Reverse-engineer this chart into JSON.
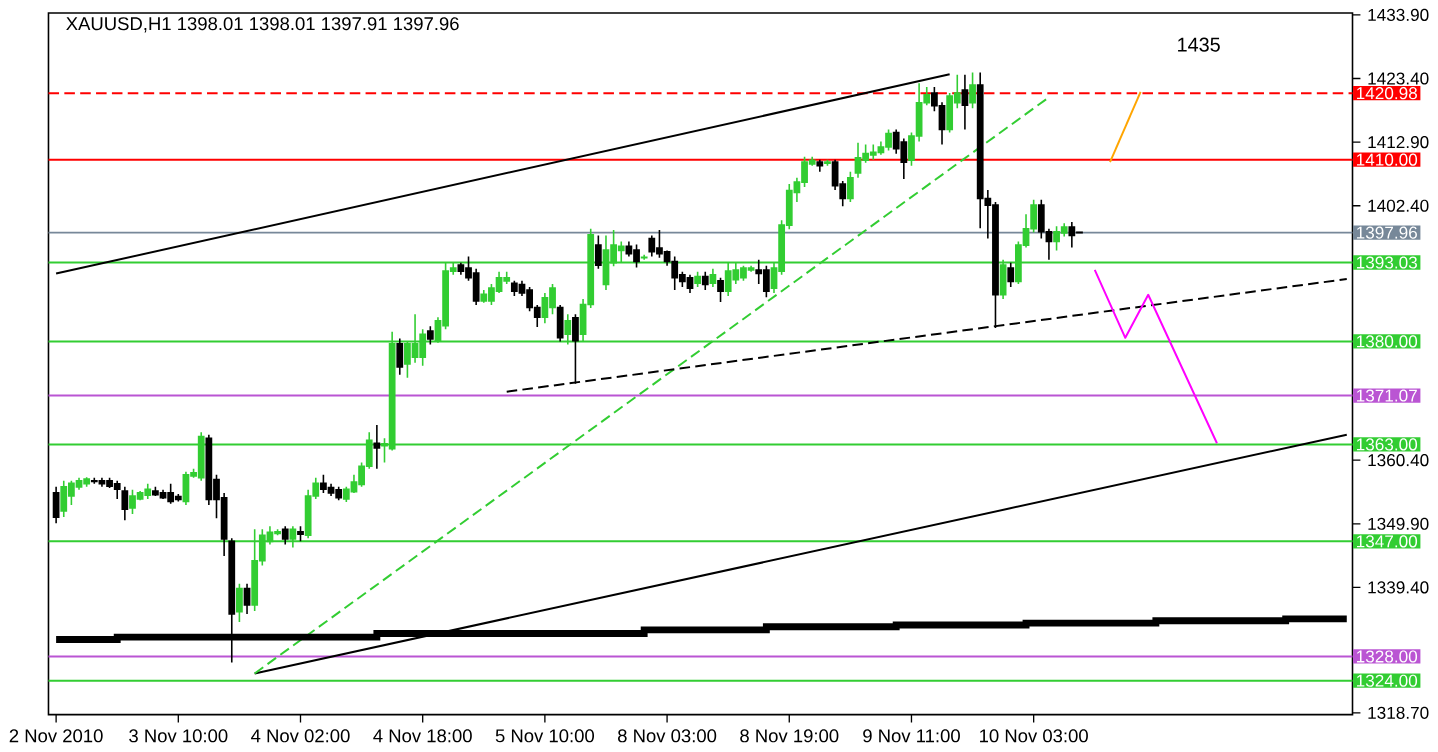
{
  "chart_data": {
    "type": "candlestick",
    "title": "XAUUSD,H1  1398.01 1398.01 1397.91 1397.96",
    "ylim": [
      1318.4,
      1434.2
    ],
    "categories": [
      "2 Nov 2010",
      null,
      null,
      null,
      null,
      null,
      null,
      null,
      null,
      null,
      null,
      null,
      null,
      null,
      null,
      null,
      "3 Nov 10:00",
      null,
      null,
      null,
      null,
      null,
      null,
      null,
      null,
      null,
      null,
      null,
      null,
      null,
      null,
      null,
      "4 Nov 02:00",
      null,
      null,
      null,
      null,
      null,
      null,
      null,
      null,
      null,
      null,
      null,
      null,
      null,
      null,
      null,
      "4 Nov 18:00",
      null,
      null,
      null,
      null,
      null,
      null,
      null,
      null,
      null,
      null,
      null,
      null,
      null,
      null,
      null,
      "5 Nov 10:00",
      null,
      null,
      null,
      null,
      null,
      null,
      null,
      null,
      null,
      null,
      null,
      null,
      null,
      null,
      null,
      "8 Nov 03:00",
      null,
      null,
      null,
      null,
      null,
      null,
      null,
      null,
      null,
      null,
      null,
      null,
      null,
      null,
      null,
      "8 Nov 19:00",
      null,
      null,
      null,
      null,
      null,
      null,
      null,
      null,
      null,
      null,
      null,
      null,
      null,
      null,
      null,
      "9 Nov 11:00",
      null,
      null,
      null,
      null,
      null,
      null,
      null,
      null,
      null,
      null,
      null,
      null,
      null,
      null,
      null,
      "10 Nov 03:00",
      null,
      null,
      null,
      null,
      null,
      null,
      null,
      null,
      null,
      null,
      null,
      null,
      null,
      null,
      null,
      null,
      null,
      null,
      null,
      null,
      null,
      null,
      null,
      null,
      null,
      null,
      null,
      null,
      null,
      null,
      null,
      null,
      null,
      null,
      null,
      null,
      null,
      null,
      null,
      null,
      null
    ],
    "yticks": [
      {
        "value": 1433.9,
        "label": "1433.90"
      },
      {
        "value": 1423.4,
        "label": "1423.40"
      },
      {
        "value": 1412.9,
        "label": "1412.90"
      },
      {
        "value": 1402.4,
        "label": "1402.40"
      },
      {
        "value": 1360.4,
        "label": "1360.40"
      },
      {
        "value": 1349.9,
        "label": "1349.90"
      },
      {
        "value": 1339.4,
        "label": "1339.40"
      },
      {
        "value": 1318.7,
        "label": "1318.70"
      }
    ],
    "ref_lines": [
      {
        "axis": "y",
        "value": 1420.98,
        "label": "1420.98",
        "color": "#ff0000",
        "line_style": "dashed"
      },
      {
        "axis": "y",
        "value": 1410.0,
        "label": "1410.00",
        "color": "#ff0000",
        "line_style": "solid"
      },
      {
        "axis": "y",
        "value": 1397.96,
        "label": "1397.96",
        "color": "#778899",
        "line_style": "solid"
      },
      {
        "axis": "y",
        "value": 1393.03,
        "label": "1393.03",
        "color": "#32cd32",
        "line_style": "solid"
      },
      {
        "axis": "y",
        "value": 1380.0,
        "label": "1380.00",
        "color": "#32cd32",
        "line_style": "solid"
      },
      {
        "axis": "y",
        "value": 1371.07,
        "label": "1371.07",
        "color": "#ba55d3",
        "line_style": "solid"
      },
      {
        "axis": "y",
        "value": 1363.0,
        "label": "1363.00",
        "color": "#32cd32",
        "line_style": "solid"
      },
      {
        "axis": "y",
        "value": 1347.0,
        "label": "1347.00",
        "color": "#32cd32",
        "line_style": "solid"
      },
      {
        "axis": "y",
        "value": 1328.0,
        "label": "1328.00",
        "color": "#ba55d3",
        "line_style": "solid"
      },
      {
        "axis": "y",
        "value": 1324.0,
        "label": "1324.00",
        "color": "#32cd32",
        "line_style": "solid"
      }
    ],
    "annotations": [
      "1435"
    ],
    "series": [
      {
        "type": "line",
        "color": "#000000",
        "line_style": "solid",
        "values": [
          1391.2,
          null,
          null,
          null,
          null,
          null,
          null,
          null,
          null,
          null,
          null,
          null,
          null,
          null,
          null,
          null,
          null,
          null,
          null,
          null,
          null,
          null,
          null,
          null,
          null,
          null,
          null,
          null,
          null,
          null,
          null,
          null,
          null,
          null,
          null,
          null,
          null,
          null,
          null,
          null,
          null,
          null,
          null,
          null,
          null,
          null,
          null,
          null,
          null,
          null,
          null,
          null,
          null,
          null,
          null,
          null,
          null,
          null,
          null,
          null,
          null,
          null,
          null,
          null,
          null,
          null,
          null,
          null,
          null,
          null,
          null,
          null,
          null,
          null,
          null,
          null,
          null,
          null,
          null,
          null,
          null,
          null,
          null,
          null,
          null,
          null,
          null,
          null,
          null,
          null,
          null,
          null,
          null,
          null,
          null,
          null,
          null,
          null,
          null,
          null,
          null,
          null,
          null,
          null,
          null,
          null,
          null,
          null,
          null,
          null,
          null,
          null,
          null,
          null,
          null,
          null,
          null,
          1424.1,
          null,
          null,
          null,
          null,
          null,
          null,
          null,
          null,
          null,
          null,
          null,
          null,
          null,
          null,
          null,
          null,
          null,
          null,
          null,
          null,
          null,
          null,
          null,
          null,
          null,
          null,
          null,
          null,
          null,
          null,
          null,
          null,
          null,
          null,
          null,
          null,
          null,
          null,
          null,
          null,
          null,
          null,
          null,
          null,
          null,
          null,
          null,
          null,
          null,
          null,
          null,
          null
        ]
      },
      {
        "type": "line",
        "color": "#000000",
        "line_style": "solid",
        "values": [
          null,
          null,
          null,
          null,
          null,
          null,
          null,
          null,
          null,
          null,
          null,
          null,
          null,
          null,
          null,
          null,
          null,
          null,
          null,
          null,
          null,
          null,
          null,
          null,
          null,
          null,
          1325.2,
          null,
          null,
          null,
          null,
          null,
          null,
          null,
          null,
          null,
          null,
          null,
          null,
          null,
          null,
          null,
          null,
          null,
          null,
          null,
          null,
          null,
          null,
          null,
          null,
          null,
          null,
          null,
          null,
          null,
          null,
          null,
          null,
          null,
          null,
          null,
          null,
          null,
          null,
          null,
          null,
          null,
          null,
          null,
          null,
          null,
          null,
          null,
          null,
          null,
          null,
          null,
          null,
          null,
          null,
          null,
          null,
          null,
          null,
          null,
          null,
          null,
          null,
          null,
          null,
          null,
          null,
          null,
          null,
          null,
          null,
          null,
          null,
          null,
          null,
          null,
          null,
          null,
          null,
          null,
          null,
          null,
          null,
          null,
          null,
          null,
          null,
          null,
          null,
          null,
          null,
          null,
          null,
          null,
          null,
          null,
          null,
          null,
          null,
          null,
          null,
          null,
          null,
          null,
          null,
          null,
          null,
          null,
          null,
          null,
          null,
          null,
          null,
          null,
          null,
          null,
          null,
          null,
          null,
          null,
          null,
          null,
          null,
          null,
          null,
          null,
          null,
          null,
          null,
          null,
          null,
          null,
          null,
          null,
          null,
          null,
          null,
          null,
          null,
          null,
          null,
          null,
          null,
          1364.6
        ]
      },
      {
        "type": "line",
        "color": "#32cd32",
        "line_style": "dashed",
        "values": [
          null,
          null,
          null,
          null,
          null,
          null,
          null,
          null,
          null,
          null,
          null,
          null,
          null,
          null,
          null,
          null,
          null,
          null,
          null,
          null,
          null,
          null,
          null,
          null,
          null,
          null,
          1325.2,
          null,
          null,
          null,
          null,
          null,
          null,
          null,
          null,
          null,
          null,
          null,
          null,
          null,
          null,
          null,
          null,
          null,
          null,
          null,
          null,
          null,
          null,
          null,
          null,
          null,
          null,
          null,
          null,
          null,
          null,
          null,
          null,
          null,
          null,
          null,
          null,
          null,
          null,
          null,
          null,
          null,
          null,
          null,
          null,
          null,
          null,
          null,
          null,
          null,
          null,
          null,
          null,
          null,
          null,
          null,
          null,
          null,
          null,
          null,
          null,
          null,
          null,
          null,
          null,
          null,
          null,
          null,
          null,
          null,
          null,
          null,
          null,
          null,
          null,
          null,
          null,
          null,
          null,
          null,
          null,
          null,
          null,
          null,
          null,
          null,
          null,
          null,
          null,
          null,
          null,
          null,
          null,
          null,
          null,
          null,
          null,
          null,
          null,
          null,
          null,
          null,
          null,
          null,
          1420.3,
          null,
          null,
          null,
          null,
          null,
          null,
          null,
          null,
          null,
          null,
          null,
          null,
          null,
          null,
          null,
          null,
          null,
          null,
          null,
          null,
          null,
          null,
          null,
          null,
          null,
          null,
          null,
          null,
          null,
          null,
          null,
          null,
          null,
          null,
          null,
          null,
          null,
          null,
          null
        ]
      },
      {
        "type": "line",
        "color": "#000000",
        "line_style": "dashed",
        "values": [
          null,
          null,
          null,
          null,
          null,
          null,
          null,
          null,
          null,
          null,
          null,
          null,
          null,
          null,
          null,
          null,
          null,
          null,
          null,
          null,
          null,
          null,
          null,
          null,
          null,
          null,
          null,
          null,
          null,
          null,
          null,
          null,
          null,
          null,
          null,
          null,
          null,
          null,
          null,
          null,
          null,
          null,
          null,
          null,
          null,
          null,
          null,
          null,
          null,
          null,
          null,
          null,
          null,
          null,
          null,
          null,
          null,
          null,
          null,
          1371.7,
          null,
          null,
          null,
          null,
          null,
          null,
          null,
          null,
          null,
          null,
          null,
          null,
          null,
          null,
          null,
          null,
          null,
          null,
          null,
          null,
          null,
          null,
          null,
          null,
          null,
          null,
          null,
          null,
          null,
          null,
          null,
          null,
          null,
          null,
          null,
          null,
          null,
          null,
          null,
          null,
          null,
          null,
          null,
          null,
          null,
          null,
          null,
          null,
          null,
          null,
          null,
          null,
          null,
          null,
          null,
          null,
          null,
          null,
          null,
          null,
          null,
          null,
          null,
          null,
          null,
          null,
          null,
          null,
          null,
          null,
          null,
          null,
          null,
          null,
          null,
          null,
          null,
          null,
          null,
          null,
          null,
          null,
          null,
          null,
          null,
          null,
          null,
          null,
          null,
          null,
          null,
          null,
          null,
          null,
          null,
          null,
          null,
          null,
          null,
          null,
          null,
          null,
          null,
          null,
          null,
          null,
          null,
          null,
          null,
          1390.3
        ]
      },
      {
        "type": "step",
        "color": "#000000",
        "line_style": "solid",
        "values": [
          1330.8,
          null,
          null,
          null,
          null,
          null,
          null,
          null,
          1331.2,
          null,
          null,
          null,
          null,
          null,
          null,
          null,
          null,
          null,
          null,
          null,
          null,
          null,
          null,
          null,
          null,
          null,
          null,
          null,
          null,
          null,
          null,
          null,
          null,
          null,
          null,
          null,
          null,
          null,
          null,
          null,
          null,
          null,
          1331.8,
          null,
          null,
          null,
          null,
          null,
          null,
          null,
          null,
          null,
          null,
          null,
          null,
          null,
          null,
          null,
          null,
          null,
          null,
          null,
          null,
          null,
          null,
          null,
          null,
          null,
          null,
          null,
          null,
          null,
          null,
          null,
          null,
          null,
          null,
          1332.4,
          null,
          null,
          null,
          null,
          null,
          null,
          null,
          null,
          null,
          null,
          null,
          null,
          null,
          null,
          null,
          1332.9,
          null,
          null,
          null,
          null,
          null,
          null,
          null,
          null,
          null,
          null,
          null,
          null,
          null,
          null,
          null,
          null,
          1333.2,
          null,
          null,
          null,
          null,
          null,
          null,
          null,
          null,
          null,
          null,
          null,
          null,
          null,
          null,
          null,
          null,
          1333.5,
          null,
          null,
          null,
          null,
          null,
          null,
          null,
          null,
          null,
          null,
          null,
          null,
          null,
          null,
          null,
          null,
          1333.9,
          null,
          null,
          null,
          null,
          null,
          null,
          null,
          null,
          null,
          null,
          null,
          null,
          null,
          null,
          null,
          null,
          1334.2,
          null,
          null,
          null,
          null,
          null,
          null,
          null,
          1334.2
        ]
      },
      {
        "type": "line",
        "color": "#ffa500",
        "line_style": "solid",
        "values": [
          null,
          null,
          null,
          null,
          null,
          null,
          null,
          null,
          null,
          null,
          null,
          null,
          null,
          null,
          null,
          null,
          null,
          null,
          null,
          null,
          null,
          null,
          null,
          null,
          null,
          null,
          null,
          null,
          null,
          null,
          null,
          null,
          null,
          null,
          null,
          null,
          null,
          null,
          null,
          null,
          null,
          null,
          null,
          null,
          null,
          null,
          null,
          null,
          null,
          null,
          null,
          null,
          null,
          null,
          null,
          null,
          null,
          null,
          null,
          null,
          null,
          null,
          null,
          null,
          null,
          null,
          null,
          null,
          null,
          null,
          null,
          null,
          null,
          null,
          null,
          null,
          null,
          null,
          null,
          null,
          null,
          null,
          null,
          null,
          null,
          null,
          null,
          null,
          null,
          null,
          null,
          null,
          null,
          null,
          null,
          null,
          null,
          null,
          null,
          null,
          null,
          null,
          null,
          null,
          null,
          null,
          null,
          null,
          null,
          null,
          null,
          null,
          null,
          null,
          null,
          null,
          null,
          null,
          null,
          null,
          null,
          null,
          null,
          null,
          null,
          null,
          null,
          null,
          null,
          null,
          null,
          null,
          null,
          null,
          null,
          null,
          null,
          null,
          1409.6,
          null,
          null,
          null,
          1421.2,
          null,
          null,
          null,
          null,
          null,
          null,
          null,
          null,
          null,
          null,
          null,
          null,
          null,
          null,
          null,
          null,
          null,
          null,
          null,
          null,
          null,
          null,
          null,
          null,
          null,
          null,
          null
        ]
      },
      {
        "type": "line",
        "color": "#ff00ff",
        "line_style": "solid",
        "values": [
          null,
          null,
          null,
          null,
          null,
          null,
          null,
          null,
          null,
          null,
          null,
          null,
          null,
          null,
          null,
          null,
          null,
          null,
          null,
          null,
          null,
          null,
          null,
          null,
          null,
          null,
          null,
          null,
          null,
          null,
          null,
          null,
          null,
          null,
          null,
          null,
          null,
          null,
          null,
          null,
          null,
          null,
          null,
          null,
          null,
          null,
          null,
          null,
          null,
          null,
          null,
          null,
          null,
          null,
          null,
          null,
          null,
          null,
          null,
          null,
          null,
          null,
          null,
          null,
          null,
          null,
          null,
          null,
          null,
          null,
          null,
          null,
          null,
          null,
          null,
          null,
          null,
          null,
          null,
          null,
          null,
          null,
          null,
          null,
          null,
          null,
          null,
          null,
          null,
          null,
          null,
          null,
          null,
          null,
          null,
          null,
          null,
          null,
          null,
          null,
          null,
          null,
          null,
          null,
          null,
          null,
          null,
          null,
          null,
          null,
          null,
          null,
          null,
          null,
          null,
          null,
          null,
          null,
          null,
          null,
          null,
          null,
          null,
          null,
          null,
          null,
          null,
          null,
          null,
          null,
          null,
          null,
          null,
          null,
          null,
          null,
          1391.8,
          null,
          null,
          null,
          1380.6,
          null,
          null,
          1387.7,
          null,
          null,
          null,
          null,
          null,
          null,
          null,
          null,
          1363.2,
          null,
          null,
          null,
          null,
          null,
          null,
          null,
          null,
          null,
          null,
          null,
          null,
          null,
          null,
          null,
          null,
          null
        ]
      }
    ],
    "colors": [
      "#000000",
      "#32cd32",
      "#32cd32",
      "#32cd32",
      "#32cd32",
      "#000000",
      "#000000",
      "#000000",
      "#000000",
      "#000000",
      "#32cd32",
      "#32cd32",
      "#32cd32",
      "#000000",
      "#000000",
      "#000000",
      "#000000",
      "#32cd32",
      "#32cd32",
      "#32cd32",
      "#000000",
      "#000000",
      "#000000",
      "#000000",
      "#32cd32",
      "#000000",
      "#32cd32",
      "#32cd32",
      "#32cd32",
      "#32cd32",
      "#000000",
      "#32cd32",
      "#000000",
      "#32cd32",
      "#32cd32",
      "#000000",
      "#000000",
      "#000000",
      "#32cd32",
      "#32cd32",
      "#32cd32",
      "#32cd32",
      "#000000",
      "#32cd32",
      "#32cd32",
      "#000000",
      "#32cd32",
      "#32cd32",
      "#32cd32",
      "#000000",
      "#32cd32",
      "#32cd32",
      "#32cd32",
      "#000000",
      "#000000",
      "#000000",
      "#32cd32",
      "#32cd32",
      "#32cd32",
      "#32cd32",
      "#000000",
      "#000000",
      "#000000",
      "#000000",
      "#32cd32",
      "#32cd32",
      "#000000",
      "#32cd32",
      "#000000",
      "#32cd32",
      "#32cd32",
      "#000000",
      "#32cd32",
      "#32cd32",
      "#32cd32",
      "#000000",
      "#000000",
      "#32cd32",
      "#000000",
      "#000000",
      "#000000",
      "#000000",
      "#000000",
      "#000000",
      "#32cd32",
      "#000000",
      "#32cd32",
      "#000000",
      "#32cd32",
      "#32cd32",
      "#32cd32",
      "#32cd32",
      "#000000",
      "#000000",
      "#32cd32",
      "#32cd32",
      "#32cd32",
      "#32cd32",
      "#32cd32",
      "#32cd32",
      "#000000",
      "#32cd32",
      "#000000",
      "#000000",
      "#32cd32",
      "#32cd32",
      "#32cd32",
      "#32cd32",
      "#32cd32",
      "#32cd32",
      "#000000",
      "#000000",
      "#32cd32",
      "#32cd32",
      "#32cd32",
      "#000000",
      "#000000",
      "#32cd32",
      "#32cd32",
      "#000000",
      "#32cd32",
      "#000000",
      "#000000",
      "#000000",
      "#32cd32",
      "#000000",
      "#32cd32",
      "#32cd32",
      "#32cd32",
      "#000000",
      "#000000",
      "#32cd32",
      "#32cd32",
      "#000000",
      "#000000",
      null,
      null,
      null,
      null,
      null,
      null,
      null,
      null,
      null,
      null,
      null,
      null,
      null,
      null,
      null,
      null,
      null,
      null,
      null,
      null,
      null,
      null,
      null,
      null,
      null,
      null,
      null,
      null,
      null,
      null,
      null,
      null,
      null,
      null,
      null
    ],
    "ohlc": [
      [
        1355,
        1356,
        1350,
        1351
      ],
      [
        1352,
        1357,
        1351,
        1356
      ],
      [
        1354.5,
        1357,
        1353,
        1356.6
      ],
      [
        1356,
        1357.5,
        1355.5,
        1357
      ],
      [
        1356.5,
        1357.6,
        1356,
        1357.3
      ],
      [
        1357,
        1357.5,
        1356.5,
        1356.9
      ],
      [
        1357,
        1357.5,
        1356,
        1356.5
      ],
      [
        1357,
        1357.5,
        1355.8,
        1356.1
      ],
      [
        1356.5,
        1357,
        1354,
        1355.6
      ],
      [
        1355.3,
        1356,
        1350.5,
        1352.3
      ],
      [
        1352.5,
        1355.5,
        1351.5,
        1354.5
      ],
      [
        1354,
        1355.3,
        1353.8,
        1355
      ],
      [
        1354.6,
        1356.5,
        1354,
        1355.6
      ],
      [
        1355.3,
        1356,
        1354.5,
        1354.7
      ],
      [
        1355,
        1355.5,
        1354,
        1354.2
      ],
      [
        1355,
        1356.5,
        1353.2,
        1353.6
      ],
      [
        1354.4,
        1354.8,
        1353.6,
        1353.9
      ],
      [
        1353.6,
        1358.5,
        1353,
        1358
      ],
      [
        1357.8,
        1359,
        1357.5,
        1358.3
      ],
      [
        1357.5,
        1365,
        1357,
        1364.3
      ],
      [
        1364,
        1364.6,
        1353,
        1353.9
      ],
      [
        1357.2,
        1358,
        1350.8,
        1353.9
      ],
      [
        1354.2,
        1355,
        1344.6,
        1347.4
      ],
      [
        1347,
        1347.5,
        1327,
        1335
      ],
      [
        1335.4,
        1340,
        1333.7,
        1339.2
      ],
      [
        1339.2,
        1340,
        1335,
        1336.5
      ],
      [
        1336.5,
        1349,
        1335.5,
        1343.8
      ],
      [
        1343.8,
        1349,
        1343,
        1348
      ],
      [
        1347,
        1349.5,
        1346.5,
        1348.5
      ],
      [
        1348.3,
        1349,
        1348,
        1348.6
      ],
      [
        1349,
        1349.5,
        1346.5,
        1347.4
      ],
      [
        1347.4,
        1349.5,
        1346,
        1349
      ],
      [
        1348.6,
        1349.5,
        1347,
        1348.2
      ],
      [
        1348,
        1355.5,
        1347.5,
        1354.5
      ],
      [
        1354.5,
        1357.5,
        1354,
        1356.6
      ],
      [
        1356.6,
        1358,
        1355,
        1355.6
      ],
      [
        1355.9,
        1356.5,
        1354.5,
        1355
      ],
      [
        1355.5,
        1356,
        1353.8,
        1354.2
      ],
      [
        1354,
        1356,
        1353.5,
        1355.6
      ],
      [
        1355.2,
        1358,
        1355,
        1356.8
      ],
      [
        1356.4,
        1360,
        1356,
        1359.4
      ],
      [
        1359.4,
        1365,
        1359,
        1363.7
      ],
      [
        1363.2,
        1366.2,
        1359,
        1362.4
      ],
      [
        1362.8,
        1364,
        1360,
        1363.1
      ],
      [
        1362.3,
        1381.6,
        1362,
        1379.6
      ],
      [
        1379.6,
        1380.5,
        1374.5,
        1375.8
      ],
      [
        1376.3,
        1380,
        1374,
        1379.6
      ],
      [
        1377.4,
        1384.5,
        1376.5,
        1379.6
      ],
      [
        1377.4,
        1382,
        1376,
        1381.2
      ],
      [
        1381.7,
        1382.5,
        1379.5,
        1380.4
      ],
      [
        1380.1,
        1384,
        1379.8,
        1383.4
      ],
      [
        1382.6,
        1393,
        1382,
        1391.6
      ],
      [
        1391.6,
        1393,
        1391,
        1392.1
      ],
      [
        1392.6,
        1393,
        1391,
        1391.6
      ],
      [
        1392.1,
        1394,
        1390,
        1390.5
      ],
      [
        1391.3,
        1392,
        1386,
        1386.7
      ],
      [
        1386.7,
        1388.5,
        1386.4,
        1387.8
      ],
      [
        1386.7,
        1389.5,
        1386,
        1388.8
      ],
      [
        1388.3,
        1391.5,
        1388,
        1390.5
      ],
      [
        1390,
        1391.5,
        1389.5,
        1390.5
      ],
      [
        1389.6,
        1390,
        1387.5,
        1388.3
      ],
      [
        1389.4,
        1390,
        1387.5,
        1388
      ],
      [
        1388.5,
        1389,
        1385,
        1385.6
      ],
      [
        1385.6,
        1386,
        1382.4,
        1384
      ],
      [
        1384,
        1388,
        1383,
        1387.2
      ],
      [
        1385.6,
        1389.5,
        1384.5,
        1388.8
      ],
      [
        1385.6,
        1386,
        1380,
        1380.6
      ],
      [
        1381.2,
        1384.5,
        1379.5,
        1383.4
      ],
      [
        1383.9,
        1384.5,
        1373,
        1380.1
      ],
      [
        1381.2,
        1387,
        1380,
        1386.1
      ],
      [
        1386.1,
        1398.6,
        1385.5,
        1397.6
      ],
      [
        1395.9,
        1397.5,
        1392,
        1392.6
      ],
      [
        1389.4,
        1397.5,
        1388.5,
        1395.1
      ],
      [
        1393,
        1398.4,
        1392.4,
        1395.9
      ],
      [
        1395,
        1396.5,
        1393,
        1395.7
      ],
      [
        1395.7,
        1396.5,
        1394,
        1394.5
      ],
      [
        1395.1,
        1396,
        1392.2,
        1393.2
      ],
      [
        1393.8,
        1394.3,
        1393.5,
        1393.9
      ],
      [
        1397,
        1397.5,
        1394,
        1394.8
      ],
      [
        1395.4,
        1398.4,
        1393.8,
        1394.5
      ],
      [
        1394.8,
        1395,
        1392.5,
        1393.2
      ],
      [
        1393.2,
        1394,
        1388.5,
        1390.5
      ],
      [
        1391,
        1391.5,
        1389,
        1389.9
      ],
      [
        1390.5,
        1391,
        1388,
        1388.8
      ],
      [
        1389.6,
        1391.5,
        1389,
        1390.7
      ],
      [
        1390.7,
        1391.5,
        1388.5,
        1389.4
      ],
      [
        1389.6,
        1392,
        1389,
        1391
      ],
      [
        1390,
        1390.5,
        1386.5,
        1388.3
      ],
      [
        1388.3,
        1393,
        1387.5,
        1391.6
      ],
      [
        1390.2,
        1393,
        1389.5,
        1391.8
      ],
      [
        1390.5,
        1392.5,
        1390,
        1392.1
      ],
      [
        1391.8,
        1392.5,
        1391.5,
        1392.1
      ],
      [
        1391.8,
        1393.5,
        1389.5,
        1391.2
      ],
      [
        1391.8,
        1392.5,
        1387.3,
        1388.3
      ],
      [
        1388.8,
        1393,
        1388,
        1392.1
      ],
      [
        1391.6,
        1400,
        1391,
        1399.2
      ],
      [
        1399.2,
        1406,
        1398.5,
        1404.9
      ],
      [
        1404.6,
        1407,
        1403,
        1406.3
      ],
      [
        1406.3,
        1410.5,
        1405.5,
        1409.6
      ],
      [
        1409.3,
        1410.5,
        1409,
        1409.9
      ],
      [
        1409.6,
        1410,
        1408,
        1409
      ],
      [
        1409.4,
        1410,
        1409,
        1409.6
      ],
      [
        1409.6,
        1410,
        1405,
        1405.7
      ],
      [
        1406,
        1406.5,
        1402.3,
        1403.6
      ],
      [
        1403.6,
        1408,
        1403,
        1407
      ],
      [
        1407.8,
        1412.8,
        1407,
        1410.3
      ],
      [
        1409.9,
        1412.5,
        1409.5,
        1411
      ],
      [
        1410.8,
        1412.5,
        1410,
        1411.2
      ],
      [
        1411.2,
        1413,
        1410.8,
        1412.1
      ],
      [
        1412.1,
        1415,
        1411.5,
        1414.3
      ],
      [
        1414.5,
        1415,
        1411,
        1411.8
      ],
      [
        1412.9,
        1413.5,
        1406.8,
        1409.6
      ],
      [
        1409.9,
        1414.5,
        1409,
        1413.9
      ],
      [
        1413.9,
        1422.6,
        1413,
        1419.4
      ],
      [
        1419.4,
        1422,
        1419,
        1420.7
      ],
      [
        1421,
        1422,
        1418,
        1418.9
      ],
      [
        1418.9,
        1419.5,
        1412.5,
        1415
      ],
      [
        1415,
        1421,
        1414.5,
        1420.5
      ],
      [
        1419.4,
        1424,
        1418.5,
        1421
      ],
      [
        1421.5,
        1424,
        1415,
        1419
      ],
      [
        1419.4,
        1424.4,
        1418.5,
        1422.3
      ],
      [
        1422.3,
        1424.4,
        1398.7,
        1403.6
      ],
      [
        1403.6,
        1405,
        1397,
        1402.5
      ],
      [
        1402.5,
        1403,
        1382.2,
        1387.7
      ],
      [
        1387.7,
        1393.5,
        1387,
        1392.6
      ],
      [
        1392.1,
        1393,
        1389,
        1389.9
      ],
      [
        1389.9,
        1396.5,
        1389.5,
        1395.9
      ],
      [
        1395.9,
        1401,
        1395.5,
        1398.6
      ],
      [
        1398.6,
        1403.4,
        1398,
        1402.5
      ],
      [
        1402.5,
        1403.4,
        1397,
        1398.1
      ],
      [
        1398.1,
        1398.6,
        1393.5,
        1396.5
      ],
      [
        1396.5,
        1399,
        1395,
        1398.1
      ],
      [
        1397.9,
        1399.5,
        1397.3,
        1398.9
      ],
      [
        1398.9,
        1399.7,
        1395.5,
        1397.5
      ],
      [
        1398.01,
        1398.01,
        1397.91,
        1397.96
      ],
      null,
      null,
      null,
      null,
      null,
      null,
      null,
      null,
      null,
      null,
      null,
      null,
      null,
      null,
      null,
      null,
      null,
      null,
      null,
      null,
      null,
      null,
      null,
      null,
      null,
      null,
      null,
      null,
      null,
      null,
      null,
      null,
      null,
      null,
      null
    ]
  }
}
